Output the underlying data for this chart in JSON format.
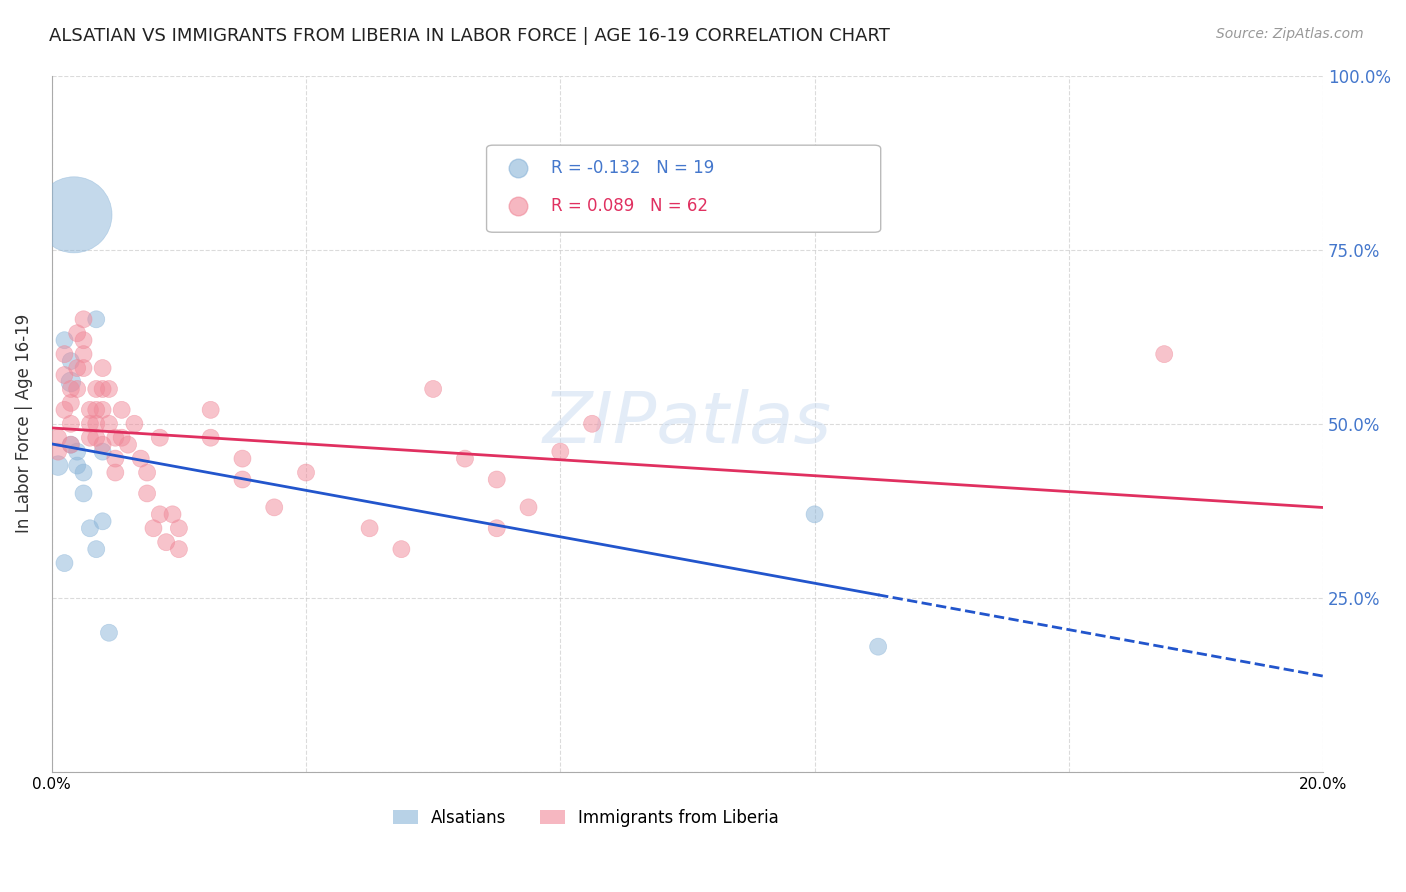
{
  "title": "ALSATIAN VS IMMIGRANTS FROM LIBERIA IN LABOR FORCE | AGE 16-19 CORRELATION CHART",
  "source": "Source: ZipAtlas.com",
  "ylabel": "In Labor Force | Age 16-19",
  "xlim": [
    0.0,
    0.2
  ],
  "ylim": [
    0.0,
    1.0
  ],
  "watermark": "ZIPatlas",
  "legend_entry1": "R = -0.132   N = 19",
  "legend_entry2": "R = 0.089   N = 62",
  "blue_color": "#8ab4d8",
  "pink_color": "#f08898",
  "reg_blue": "#2255cc",
  "reg_pink": "#e03060",
  "alsatians_x": [
    0.001,
    0.002,
    0.002,
    0.003,
    0.003,
    0.003,
    0.004,
    0.004,
    0.005,
    0.005,
    0.006,
    0.007,
    0.007,
    0.0035,
    0.008,
    0.008,
    0.009,
    0.12,
    0.13
  ],
  "alsatians_y": [
    0.44,
    0.62,
    0.3,
    0.59,
    0.56,
    0.47,
    0.46,
    0.44,
    0.4,
    0.43,
    0.35,
    0.32,
    0.65,
    0.8,
    0.46,
    0.36,
    0.2,
    0.37,
    0.18
  ],
  "alsatians_sizes": [
    200,
    150,
    150,
    150,
    200,
    150,
    150,
    150,
    150,
    150,
    150,
    150,
    150,
    3000,
    150,
    150,
    150,
    150,
    150
  ],
  "liberia_x": [
    0.001,
    0.001,
    0.002,
    0.002,
    0.002,
    0.003,
    0.003,
    0.003,
    0.003,
    0.004,
    0.004,
    0.004,
    0.005,
    0.005,
    0.005,
    0.005,
    0.006,
    0.006,
    0.006,
    0.007,
    0.007,
    0.007,
    0.007,
    0.008,
    0.008,
    0.008,
    0.008,
    0.009,
    0.009,
    0.01,
    0.01,
    0.01,
    0.011,
    0.011,
    0.012,
    0.013,
    0.014,
    0.015,
    0.015,
    0.016,
    0.017,
    0.017,
    0.018,
    0.019,
    0.02,
    0.02,
    0.025,
    0.025,
    0.03,
    0.03,
    0.035,
    0.04,
    0.05,
    0.055,
    0.06,
    0.065,
    0.07,
    0.07,
    0.075,
    0.08,
    0.085,
    0.175
  ],
  "liberia_y": [
    0.48,
    0.46,
    0.6,
    0.57,
    0.52,
    0.55,
    0.53,
    0.5,
    0.47,
    0.63,
    0.58,
    0.55,
    0.65,
    0.62,
    0.6,
    0.58,
    0.52,
    0.5,
    0.48,
    0.55,
    0.52,
    0.5,
    0.48,
    0.58,
    0.55,
    0.52,
    0.47,
    0.55,
    0.5,
    0.48,
    0.45,
    0.43,
    0.52,
    0.48,
    0.47,
    0.5,
    0.45,
    0.43,
    0.4,
    0.35,
    0.48,
    0.37,
    0.33,
    0.37,
    0.35,
    0.32,
    0.52,
    0.48,
    0.45,
    0.42,
    0.38,
    0.43,
    0.35,
    0.32,
    0.55,
    0.45,
    0.42,
    0.35,
    0.38,
    0.46,
    0.5,
    0.6
  ],
  "liberia_sizes": [
    150,
    150,
    150,
    150,
    150,
    150,
    150,
    150,
    150,
    150,
    150,
    150,
    150,
    150,
    150,
    150,
    150,
    150,
    150,
    150,
    150,
    150,
    150,
    150,
    150,
    150,
    150,
    150,
    150,
    150,
    150,
    150,
    150,
    150,
    150,
    150,
    150,
    150,
    150,
    150,
    150,
    150,
    150,
    150,
    150,
    150,
    150,
    150,
    150,
    150,
    150,
    150,
    150,
    150,
    150,
    150,
    150,
    150,
    150,
    150,
    150,
    150
  ]
}
